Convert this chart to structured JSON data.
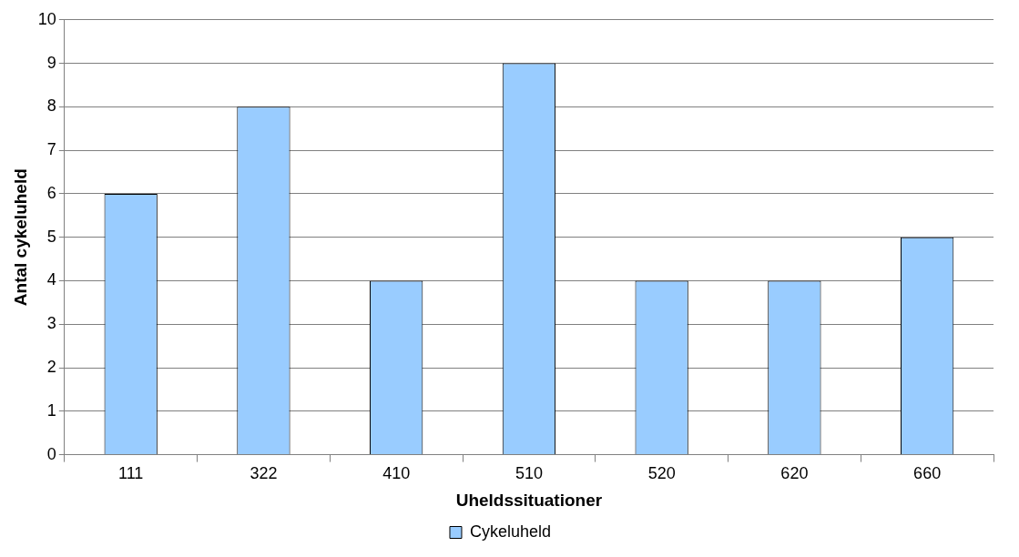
{
  "chart_data": {
    "type": "bar",
    "xlabel": "Uheldssituationer",
    "ylabel": "Antal cykeluheld",
    "categories": [
      "111",
      "322",
      "410",
      "510",
      "520",
      "620",
      "660"
    ],
    "series": [
      {
        "name": "Cykeluheld",
        "color": "#99ccff",
        "values": [
          6,
          8,
          4,
          9,
          4,
          4,
          5
        ]
      }
    ],
    "ylim": [
      0,
      10
    ],
    "yticks": [
      0,
      1,
      2,
      3,
      4,
      5,
      6,
      7,
      8,
      9,
      10
    ],
    "grid": "y",
    "legend": "bottom"
  }
}
